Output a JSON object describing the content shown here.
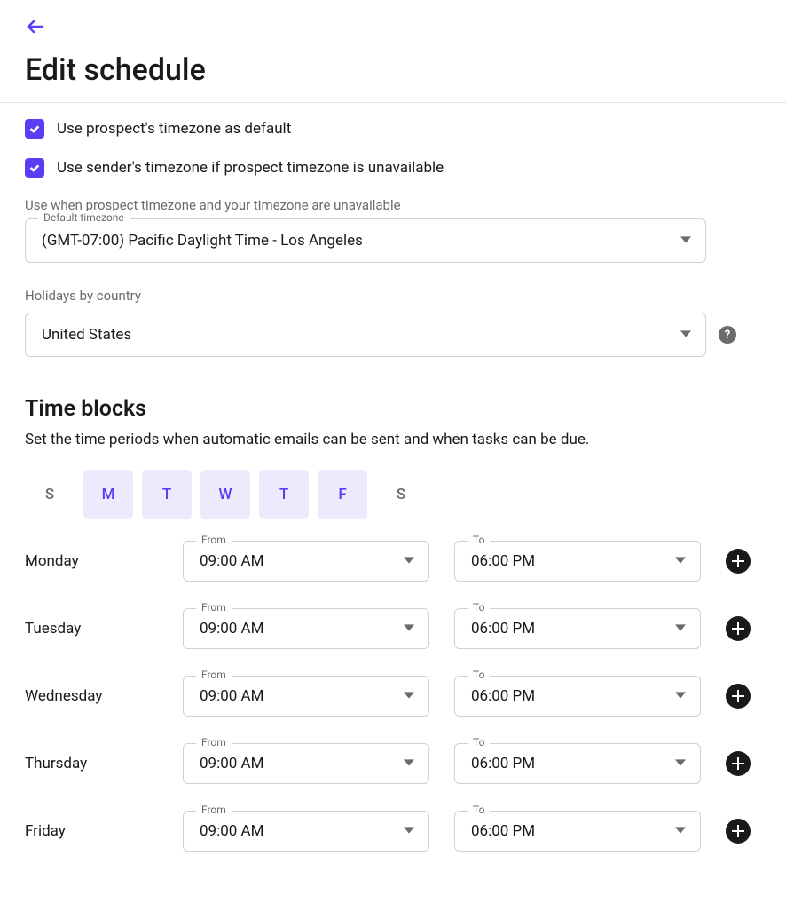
{
  "colors": {
    "accent": "#5b3df5",
    "accent_light": "#eceafd",
    "text": "#1a1a1a",
    "muted": "#6b6b6b",
    "border": "#d0d0d0",
    "dark": "#1a1a1a",
    "background": "#ffffff"
  },
  "header": {
    "title": "Edit schedule"
  },
  "checkboxes": {
    "prospect_tz": {
      "checked": true,
      "label": "Use prospect's timezone as default"
    },
    "sender_tz": {
      "checked": true,
      "label": "Use sender's timezone if prospect timezone is unavailable"
    }
  },
  "default_timezone": {
    "helper": "Use when prospect timezone and your timezone are unavailable",
    "float_label": "Default timezone",
    "value": "(GMT-07:00) Pacific Daylight Time - Los Angeles"
  },
  "holidays": {
    "label": "Holidays by country",
    "value": "United States"
  },
  "time_blocks": {
    "title": "Time blocks",
    "description": "Set the time periods when automatic emails can be sent and when tasks can be due.",
    "from_label": "From",
    "to_label": "To",
    "day_toggles": [
      {
        "letter": "S",
        "active": false
      },
      {
        "letter": "M",
        "active": true
      },
      {
        "letter": "T",
        "active": true
      },
      {
        "letter": "W",
        "active": true
      },
      {
        "letter": "T",
        "active": true
      },
      {
        "letter": "F",
        "active": true
      },
      {
        "letter": "S",
        "active": false
      }
    ],
    "rows": [
      {
        "day": "Monday",
        "from": "09:00 AM",
        "to": "06:00 PM"
      },
      {
        "day": "Tuesday",
        "from": "09:00 AM",
        "to": "06:00 PM"
      },
      {
        "day": "Wednesday",
        "from": "09:00 AM",
        "to": "06:00 PM"
      },
      {
        "day": "Thursday",
        "from": "09:00 AM",
        "to": "06:00 PM"
      },
      {
        "day": "Friday",
        "from": "09:00 AM",
        "to": "06:00 PM"
      }
    ]
  }
}
